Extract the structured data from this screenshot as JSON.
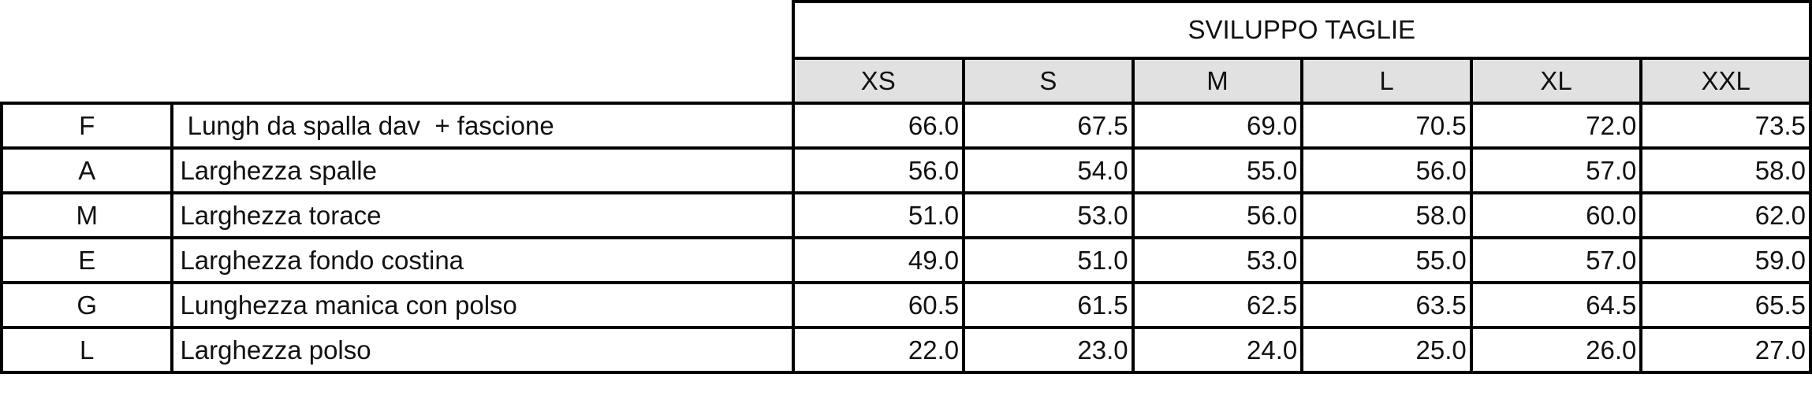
{
  "header": {
    "title": "SVILUPPO TAGLIE"
  },
  "sizes": [
    "XS",
    "S",
    "M",
    "L",
    "XL",
    "XXL"
  ],
  "colors": {
    "code_letter": "#ff5a2a",
    "size_header_bg": "#e1e1e1"
  },
  "rows": [
    {
      "code": "F",
      "label": " Lungh da spalla dav  + fascione",
      "values": [
        "66.0",
        "67.5",
        "69.0",
        "70.5",
        "72.0",
        "73.5"
      ]
    },
    {
      "code": "A",
      "label": "Larghezza spalle",
      "values": [
        "56.0",
        "54.0",
        "55.0",
        "56.0",
        "57.0",
        "58.0"
      ]
    },
    {
      "code": "M",
      "label": "Larghezza torace",
      "values": [
        "51.0",
        "53.0",
        "56.0",
        "58.0",
        "60.0",
        "62.0"
      ]
    },
    {
      "code": "E",
      "label": "Larghezza fondo costina",
      "values": [
        "49.0",
        "51.0",
        "53.0",
        "55.0",
        "57.0",
        "59.0"
      ]
    },
    {
      "code": "G",
      "label": "Lunghezza manica con polso",
      "values": [
        "60.5",
        "61.5",
        "62.5",
        "63.5",
        "64.5",
        "65.5"
      ]
    },
    {
      "code": "L",
      "label": "Larghezza polso",
      "values": [
        "22.0",
        "23.0",
        "24.0",
        "25.0",
        "26.0",
        "27.0"
      ]
    }
  ]
}
